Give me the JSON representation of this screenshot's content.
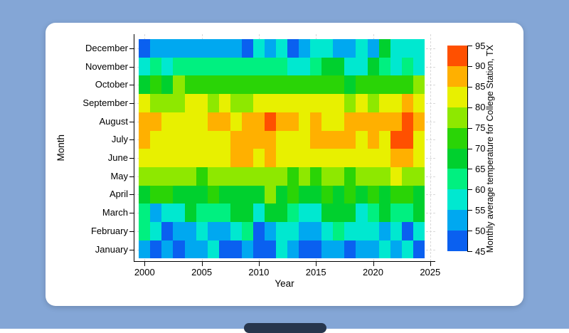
{
  "page": {
    "background": "#84a6d6",
    "card_background": "#ffffff"
  },
  "chart_data": {
    "type": "heatmap",
    "title": "",
    "xlabel": "Year",
    "ylabel": "Month",
    "colorbar_label": "Monthly average temperature for College Station, TX",
    "x_range": [
      2000,
      2025
    ],
    "x_ticks": [
      2000,
      2005,
      2010,
      2015,
      2020,
      2025
    ],
    "years": [
      2000,
      2001,
      2002,
      2003,
      2004,
      2005,
      2006,
      2007,
      2008,
      2009,
      2010,
      2011,
      2012,
      2013,
      2014,
      2015,
      2016,
      2017,
      2018,
      2019,
      2020,
      2021,
      2022,
      2023,
      2024
    ],
    "colorbar_ticks": [
      45,
      50,
      55,
      60,
      65,
      70,
      75,
      80,
      85,
      90,
      95
    ],
    "colorbar_range": [
      45,
      95
    ],
    "bins": [
      {
        "min": 45,
        "max": 50,
        "color": "#0a60f0"
      },
      {
        "min": 50,
        "max": 55,
        "color": "#00a8f0"
      },
      {
        "min": 55,
        "max": 60,
        "color": "#00e8d0"
      },
      {
        "min": 60,
        "max": 65,
        "color": "#00f080"
      },
      {
        "min": 65,
        "max": 70,
        "color": "#00d02e"
      },
      {
        "min": 70,
        "max": 75,
        "color": "#2ad406"
      },
      {
        "min": 75,
        "max": 80,
        "color": "#8ee800"
      },
      {
        "min": 80,
        "max": 85,
        "color": "#e8f000"
      },
      {
        "min": 85,
        "max": 90,
        "color": "#ffb000"
      },
      {
        "min": 90,
        "max": 95,
        "color": "#ff5000"
      }
    ],
    "rows": [
      {
        "month": "December",
        "values": [
          47,
          52,
          52,
          52,
          52,
          52,
          52,
          52,
          52,
          47,
          57,
          52,
          57,
          47,
          52,
          57,
          57,
          52,
          52,
          57,
          52,
          67,
          57,
          57,
          57
        ]
      },
      {
        "month": "November",
        "values": [
          57,
          62,
          57,
          62,
          62,
          62,
          62,
          62,
          62,
          62,
          62,
          62,
          62,
          57,
          57,
          62,
          67,
          67,
          57,
          57,
          67,
          62,
          57,
          62,
          57
        ]
      },
      {
        "month": "October",
        "values": [
          67,
          72,
          67,
          77,
          72,
          72,
          72,
          72,
          72,
          72,
          72,
          72,
          72,
          72,
          72,
          72,
          72,
          72,
          67,
          72,
          72,
          72,
          72,
          72,
          77
        ]
      },
      {
        "month": "September",
        "values": [
          82,
          77,
          77,
          77,
          82,
          82,
          77,
          82,
          77,
          77,
          82,
          82,
          82,
          82,
          82,
          82,
          82,
          82,
          77,
          82,
          77,
          82,
          82,
          87,
          82
        ]
      },
      {
        "month": "August",
        "values": [
          87,
          87,
          82,
          82,
          82,
          82,
          87,
          87,
          82,
          87,
          87,
          92,
          87,
          87,
          82,
          87,
          82,
          82,
          87,
          87,
          87,
          87,
          87,
          92,
          87
        ]
      },
      {
        "month": "July",
        "values": [
          87,
          82,
          82,
          82,
          82,
          82,
          82,
          82,
          87,
          87,
          87,
          87,
          82,
          82,
          82,
          87,
          87,
          87,
          87,
          82,
          87,
          82,
          92,
          92,
          82
        ]
      },
      {
        "month": "June",
        "values": [
          82,
          82,
          82,
          82,
          82,
          82,
          82,
          82,
          87,
          87,
          82,
          87,
          82,
          82,
          82,
          82,
          82,
          82,
          82,
          82,
          82,
          82,
          87,
          87,
          82
        ]
      },
      {
        "month": "May",
        "values": [
          77,
          77,
          77,
          77,
          77,
          72,
          77,
          77,
          77,
          77,
          77,
          77,
          77,
          72,
          77,
          72,
          77,
          77,
          72,
          77,
          77,
          77,
          82,
          77,
          77
        ]
      },
      {
        "month": "April",
        "values": [
          67,
          72,
          72,
          67,
          67,
          67,
          72,
          67,
          67,
          67,
          67,
          77,
          67,
          72,
          67,
          67,
          72,
          67,
          72,
          67,
          72,
          67,
          72,
          72,
          67
        ]
      },
      {
        "month": "March",
        "values": [
          62,
          52,
          57,
          57,
          67,
          62,
          62,
          62,
          67,
          67,
          57,
          67,
          67,
          62,
          57,
          57,
          67,
          67,
          67,
          57,
          62,
          67,
          62,
          62,
          67
        ]
      },
      {
        "month": "February",
        "values": [
          62,
          57,
          47,
          52,
          52,
          57,
          52,
          52,
          57,
          62,
          47,
          52,
          57,
          57,
          52,
          52,
          57,
          62,
          57,
          57,
          57,
          52,
          57,
          47,
          57
        ]
      },
      {
        "month": "January",
        "values": [
          52,
          47,
          52,
          47,
          52,
          52,
          57,
          47,
          47,
          52,
          47,
          47,
          57,
          52,
          47,
          47,
          52,
          52,
          47,
          52,
          52,
          57,
          52,
          57,
          47
        ]
      }
    ],
    "legend_position": "right-colorbar",
    "grid": "dashed"
  }
}
